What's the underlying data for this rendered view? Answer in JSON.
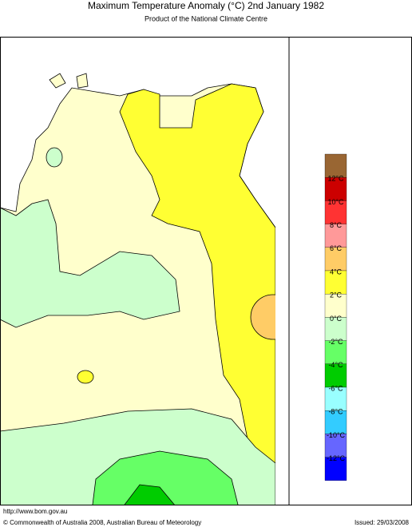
{
  "header": {
    "title": "Maximum Temperature Anomaly (°C)  2nd January 1982",
    "subtitle": "Product of the National Climate Centre"
  },
  "legend": {
    "colors": [
      "#996633",
      "#cc0000",
      "#ff3333",
      "#ff9999",
      "#ffcc66",
      "#ffff33",
      "#ffffcc",
      "#ccffcc",
      "#66ff66",
      "#00cc00",
      "#99ffff",
      "#33ccff",
      "#6666ff",
      "#0000ff"
    ],
    "labels": [
      "12°C",
      "10°C",
      "8°C",
      "6°C",
      "4°C",
      "2°C",
      "0°C",
      "-2°C",
      "-4°C",
      "-6°C",
      "-8°C",
      "-10°C",
      "-12°C"
    ]
  },
  "footer": {
    "url": "http://www.bom.gov.au",
    "copyright": "© Commonwealth of Australia 2008, Australian Bureau of Meteorology",
    "issued": "Issued: 29/03/2008"
  }
}
